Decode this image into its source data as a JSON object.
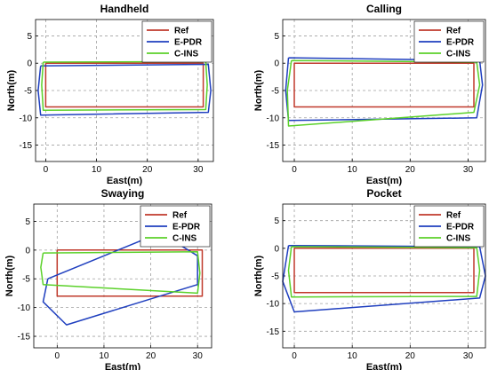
{
  "colors": {
    "ref": "#c0392b",
    "epdr": "#1f3fbf",
    "cins": "#5bd12a",
    "grid": "#a0a0a0",
    "axis": "#000000"
  },
  "chart_data": [
    {
      "type": "line",
      "title": "Handheld",
      "xlabel": "East(m)",
      "ylabel": "North(m)",
      "xlim": [
        -2,
        33
      ],
      "ylim": [
        -18,
        8
      ],
      "xticks": [
        "0",
        "10",
        "20",
        "30"
      ],
      "yticks": [
        "5",
        "0",
        "-5",
        "-10",
        "-15"
      ],
      "grid": true,
      "legend_position": "top-right",
      "series": [
        {
          "name": "Ref",
          "key": "ref",
          "x": [
            0,
            31,
            31,
            0,
            0
          ],
          "y": [
            0,
            0,
            -8,
            -8,
            0
          ]
        },
        {
          "name": "E-PDR",
          "key": "epdr",
          "x": [
            -1,
            32,
            32.5,
            32,
            -1,
            -1.5,
            -1
          ],
          "y": [
            -0.5,
            -0.2,
            -5,
            -9,
            -9.5,
            -5,
            -0.5
          ]
        },
        {
          "name": "C-INS",
          "key": "cins",
          "x": [
            -0.5,
            31.5,
            31.8,
            31.5,
            -0.5,
            -0.8,
            -0.5
          ],
          "y": [
            0.2,
            0.3,
            -4,
            -8.5,
            -8.6,
            -4,
            0.2
          ]
        }
      ]
    },
    {
      "type": "line",
      "title": "Calling",
      "xlabel": "East(m)",
      "ylabel": "North(m)",
      "xlim": [
        -2,
        33
      ],
      "ylim": [
        -18,
        8
      ],
      "xticks": [
        "0",
        "10",
        "20",
        "30"
      ],
      "yticks": [
        "5",
        "0",
        "-5",
        "-10",
        "-15"
      ],
      "grid": true,
      "legend_position": "top-right",
      "series": [
        {
          "name": "Ref",
          "key": "ref",
          "x": [
            0,
            31,
            31,
            0,
            0
          ],
          "y": [
            0,
            0,
            -8,
            -8,
            0
          ]
        },
        {
          "name": "E-PDR",
          "key": "epdr",
          "x": [
            -1,
            32,
            32.5,
            31.5,
            -1,
            -1.5,
            -1
          ],
          "y": [
            1,
            0.5,
            -4,
            -10,
            -10.5,
            -5,
            1
          ]
        },
        {
          "name": "C-INS",
          "key": "cins",
          "x": [
            -0.5,
            31.5,
            32,
            31,
            -1,
            -1.2,
            -0.5
          ],
          "y": [
            0.5,
            0.2,
            -4,
            -9,
            -11.5,
            -5,
            0.5
          ]
        }
      ]
    },
    {
      "type": "line",
      "title": "Swaying",
      "xlabel": "East(m)",
      "ylabel": "North(m)",
      "xlim": [
        -5,
        33
      ],
      "ylim": [
        -17,
        8
      ],
      "xticks": [
        "0",
        "10",
        "20",
        "30"
      ],
      "yticks": [
        "5",
        "0",
        "-5",
        "-10",
        "-15"
      ],
      "grid": true,
      "legend_position": "top-right",
      "series": [
        {
          "name": "Ref",
          "key": "ref",
          "x": [
            0,
            31,
            31,
            0,
            0
          ],
          "y": [
            0,
            0,
            -8,
            -8,
            0
          ]
        },
        {
          "name": "E-PDR",
          "key": "epdr",
          "x": [
            -2,
            22,
            30,
            30,
            2,
            -3,
            -2
          ],
          "y": [
            -5,
            3,
            -1,
            -6,
            -13,
            -9,
            -5
          ]
        },
        {
          "name": "C-INS",
          "key": "cins",
          "x": [
            -3,
            30,
            30.5,
            30,
            -3,
            -3.5,
            -3
          ],
          "y": [
            -0.5,
            -0.3,
            -4,
            -7.5,
            -6,
            -3,
            -0.5
          ]
        }
      ]
    },
    {
      "type": "line",
      "title": "Pocket",
      "xlabel": "East(m)",
      "ylabel": "North(m)",
      "xlim": [
        -2,
        33
      ],
      "ylim": [
        -18,
        8
      ],
      "xticks": [
        "0",
        "10",
        "20",
        "30"
      ],
      "yticks": [
        "5",
        "0",
        "-5",
        "-10",
        "-15"
      ],
      "grid": true,
      "legend_position": "top-right",
      "series": [
        {
          "name": "Ref",
          "key": "ref",
          "x": [
            0,
            31,
            31,
            0,
            0
          ],
          "y": [
            0,
            0,
            -8,
            -8,
            0
          ]
        },
        {
          "name": "E-PDR",
          "key": "epdr",
          "x": [
            -1,
            32,
            33,
            32,
            0,
            -2,
            -1
          ],
          "y": [
            0.5,
            0.3,
            -5,
            -9,
            -11.5,
            -6,
            0.5
          ]
        },
        {
          "name": "C-INS",
          "key": "cins",
          "x": [
            -0.5,
            31.5,
            32,
            31.5,
            -0.5,
            -1,
            -0.5
          ],
          "y": [
            0.3,
            0.1,
            -4,
            -8.7,
            -8.8,
            -4,
            0.3
          ]
        }
      ]
    }
  ]
}
